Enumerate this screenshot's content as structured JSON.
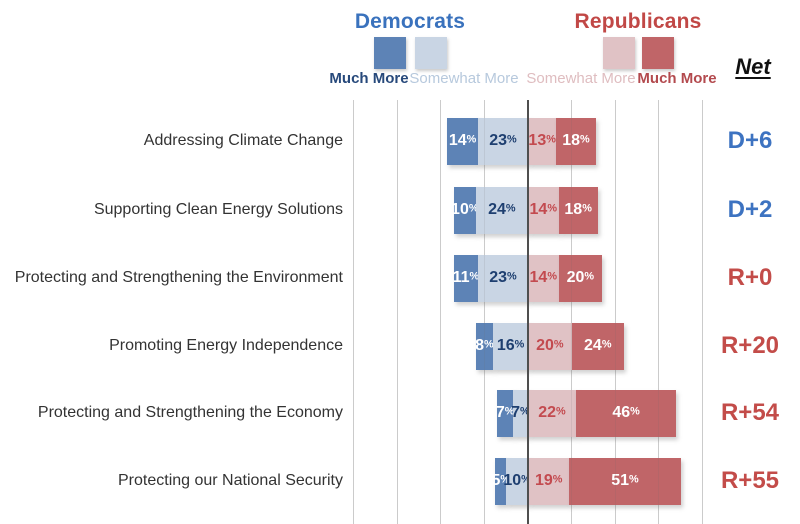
{
  "page": {
    "background": "#ffffff"
  },
  "legend": {
    "democrats": {
      "title": "Democrats",
      "much_more_label": "Much More",
      "somewhat_more_label": "Somewhat More"
    },
    "republicans": {
      "title": "Republicans",
      "somewhat_more_label": "Somewhat More",
      "much_more_label": "Much More"
    },
    "net_header": "Net"
  },
  "colors": {
    "dem_dark": "#5d83b6",
    "dem_light": "#c9d5e4",
    "rep_light": "#e0c2c5",
    "rep_dark": "#c06568",
    "dem_title": "#3a72bd",
    "rep_title": "#c14846",
    "net_dem": "#3d73c1",
    "net_rep": "#c34c49",
    "value_on_dark": "#ffffff",
    "value_navy": "#1e3f70",
    "value_red": "#c34a4f",
    "legend_dem_much_text": "#27497b",
    "legend_dem_some_text": "#b7c9dd",
    "legend_rep_some_text": "#dfbdc0",
    "legend_rep_much_text": "#b34a4e",
    "category_text": "#333333",
    "net_header_text": "#111111",
    "gridline": "#d9d9d9",
    "zero_line": "#4f4f4f"
  },
  "chart_data": {
    "type": "bar",
    "variant": "diverging_stacked_horizontal",
    "title": "",
    "categories": [
      "Addressing Climate Change",
      "Supporting Clean Energy Solutions",
      "Protecting and Strengthening the Environment",
      "Promoting Energy Independence",
      "Protecting and Strengthening the Economy",
      "Protecting our National Security"
    ],
    "series": [
      {
        "name": "Democrats - Much More",
        "party": "democrats",
        "values": [
          14,
          10,
          11,
          8,
          7,
          5
        ]
      },
      {
        "name": "Democrats - Somewhat More",
        "party": "democrats",
        "values": [
          23,
          24,
          23,
          16,
          7,
          10
        ]
      },
      {
        "name": "Republicans - Somewhat More",
        "party": "republicans",
        "values": [
          13,
          14,
          14,
          20,
          22,
          19
        ]
      },
      {
        "name": "Republicans - Much More",
        "party": "republicans",
        "values": [
          18,
          18,
          20,
          24,
          46,
          51
        ]
      }
    ],
    "value_suffix": "%",
    "net": [
      "D+6",
      "D+2",
      "R+0",
      "R+20",
      "R+54",
      "R+55"
    ],
    "axis": {
      "min": -80,
      "max": 80,
      "grid_step": 20,
      "zero_line": true
    },
    "legend_position": "top",
    "grid": true
  }
}
